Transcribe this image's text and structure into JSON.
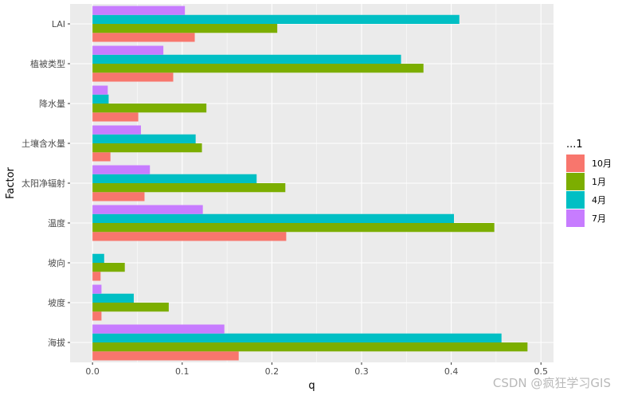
{
  "chart_data": {
    "type": "bar",
    "orientation": "horizontal",
    "title": "",
    "xlabel": "q",
    "ylabel": "Factor",
    "xlim": [
      -0.025,
      0.514
    ],
    "xticks": [
      "0.0",
      "0.1",
      "0.2",
      "0.3",
      "0.4",
      "0.5"
    ],
    "xtick_values": [
      0,
      0.1,
      0.2,
      0.3,
      0.4,
      0.5
    ],
    "categories": [
      "海拔",
      "坡度",
      "坡向",
      "温度",
      "太阳净辐射",
      "土壤含水量",
      "降水量",
      "植被类型",
      "LAI"
    ],
    "legend_title": "...1",
    "legend_position": "right",
    "series": [
      {
        "name": "10月",
        "color": "#F8766D",
        "values": [
          0.163,
          0.01,
          0.009,
          0.216,
          0.058,
          0.02,
          0.051,
          0.09,
          0.114
        ]
      },
      {
        "name": "1月",
        "color": "#7CAE00",
        "values": [
          0.485,
          0.085,
          0.036,
          0.448,
          0.215,
          0.122,
          0.127,
          0.369,
          0.206
        ]
      },
      {
        "name": "4月",
        "color": "#00BFC4",
        "values": [
          0.456,
          0.046,
          0.013,
          0.403,
          0.183,
          0.115,
          0.018,
          0.344,
          0.409
        ]
      },
      {
        "name": "7月",
        "color": "#C77CFF",
        "values": [
          0.147,
          0.01,
          0.0,
          0.123,
          0.064,
          0.054,
          0.017,
          0.079,
          0.103
        ]
      }
    ]
  },
  "watermark": "CSDN @疯狂学习GIS"
}
